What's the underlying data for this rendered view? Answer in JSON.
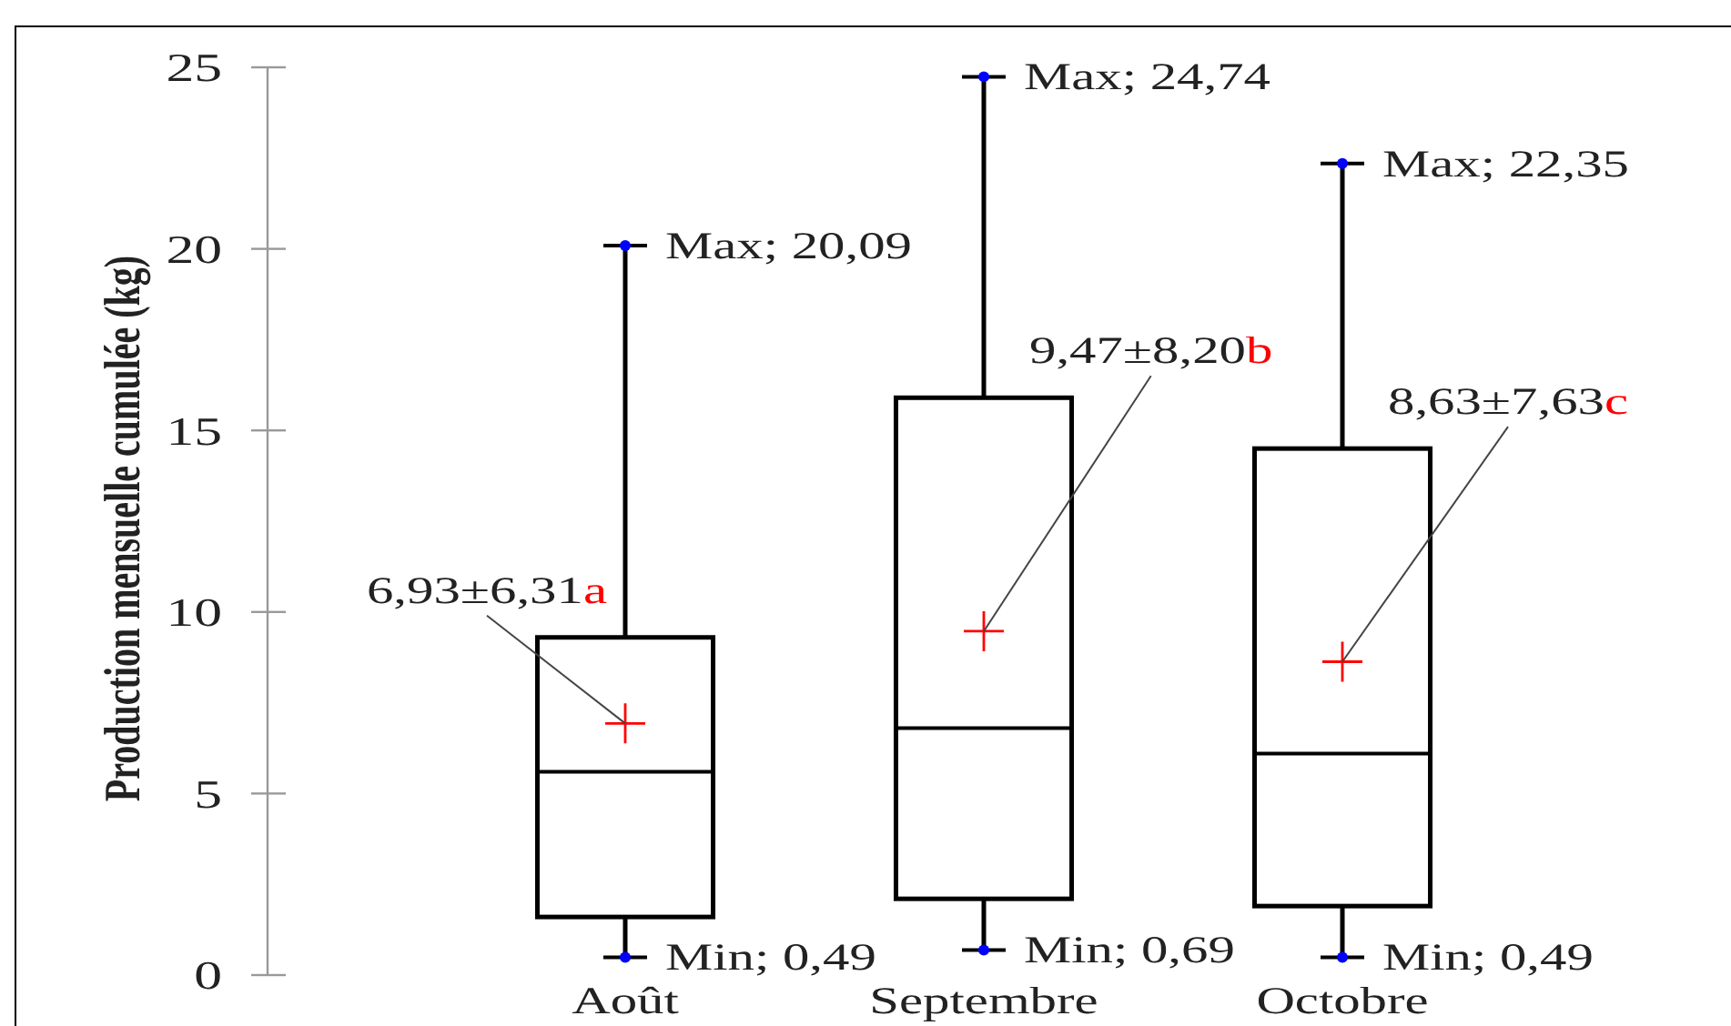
{
  "chart_data": {
    "type": "box",
    "ylabel": "Production mensuelle cumulée (kg)",
    "categories": [
      "Août",
      "Septembre",
      "Octobre"
    ],
    "series": [
      {
        "color": "#000000",
        "boxes": [
          {
            "low": 0.49,
            "q1": 1.6,
            "median": 5.6,
            "q3": 9.3,
            "high": 20.09,
            "mean": 6.93
          },
          {
            "low": 0.69,
            "q1": 2.1,
            "median": 6.8,
            "q3": 15.9,
            "high": 24.74,
            "mean": 9.47
          },
          {
            "low": 0.49,
            "q1": 1.9,
            "median": 6.1,
            "q3": 14.5,
            "high": 22.35,
            "mean": 8.63
          }
        ]
      }
    ],
    "ylim": [
      0,
      25
    ],
    "yticks": [
      0,
      5,
      10,
      15,
      20,
      25
    ],
    "annotations": [
      {
        "text": "Max; 20,09",
        "x": "Août",
        "y": 20.09
      },
      {
        "text": "Min; 0,49",
        "x": "Août",
        "y": 0.49
      },
      "6,93±6,31a",
      {
        "text": "Max; 24,74",
        "x": "Septembre",
        "y": 24.74
      },
      {
        "text": "Min; 0,69",
        "x": "Septembre",
        "y": 0.69
      },
      "9,47±8,20b",
      {
        "text": "Max; 22,35",
        "x": "Octobre",
        "y": 22.35
      },
      {
        "text": "Min; 0,49",
        "x": "Octobre",
        "y": 0.49
      },
      "8,63±7,63c"
    ]
  }
}
